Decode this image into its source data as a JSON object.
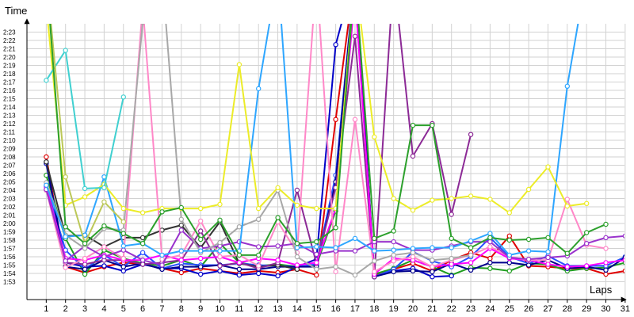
{
  "chart_data": {
    "type": "line",
    "xlabel": "Laps",
    "ylabel": "Time",
    "grid": true,
    "x": [
      1,
      2,
      3,
      4,
      5,
      6,
      7,
      8,
      9,
      10,
      11,
      12,
      13,
      14,
      15,
      16,
      17,
      18,
      19,
      20,
      21,
      22,
      23,
      24,
      25,
      26,
      27,
      28,
      29,
      30,
      31
    ],
    "x_range": [
      0,
      31.5
    ],
    "y_tick_labels": [
      "1:53",
      "1:54",
      "1:55",
      "1:56",
      "1:57",
      "1:58",
      "1:59",
      "2:00",
      "2:01",
      "2:02",
      "2:03",
      "2:04",
      "2:05",
      "2:06",
      "2:07",
      "2:08",
      "2:09",
      "2:10",
      "2:11",
      "2:12",
      "2:13",
      "2:14",
      "2:15",
      "2:16",
      "2:17",
      "2:18",
      "2:19",
      "2:20",
      "2:21",
      "2:22",
      "2:23"
    ],
    "y_range_seconds": [
      112,
      150
    ],
    "series": [
      {
        "color": "#e00000",
        "values": [
          128,
          114.8,
          114.1,
          114.8,
          115.3,
          115.1,
          114.6,
          114.1,
          114.6,
          114.3,
          114.0,
          114.3,
          114.1,
          114.5,
          113.8,
          132.5,
          150,
          113.8,
          114.5,
          115.2,
          114.3,
          115.6,
          116.5,
          115.8,
          118.5,
          114.9,
          114.8,
          114.6,
          114.6,
          113.9,
          114.3
        ]
      },
      {
        "color": "#1f9e1f",
        "values": [
          125.8,
          118.2,
          113.9,
          116.8,
          115.8,
          115.2,
          114.9,
          115.6,
          114.8,
          117.6,
          115.3,
          114.9,
          115.1,
          114.8,
          115.0,
          121.5,
          150,
          113.9,
          114.6,
          115.6,
          114.8,
          113.8,
          114.7,
          114.6,
          114.3,
          115.2,
          115.1,
          114.3,
          114.6,
          114.7,
          115.3
        ]
      },
      {
        "color": "#0000c8",
        "values": [
          127.2,
          115.3,
          114.8,
          114.9,
          114.3,
          115.1,
          114.6,
          114.6,
          113.9,
          114.3,
          113.8,
          114.0,
          113.7,
          114.8,
          115.7,
          141.5,
          150,
          113.6,
          114.3,
          114.6,
          113.6,
          113.7,
          null,
          null,
          null,
          null,
          null,
          null,
          null,
          null,
          null
        ]
      },
      {
        "color": "#2850ff",
        "values": [
          124.5,
          116.8,
          114.5,
          116.2,
          114.8,
          116.5,
          114.6,
          115.2,
          115.0,
          115.0,
          115.2,
          115.0,
          114.9,
          114.8,
          115.1,
          125.8,
          150,
          113.6,
          114.5,
          116.6,
          115.5,
          114.8,
          116.0,
          118.3,
          116.0,
          115.2,
          116.1,
          114.9,
          114.9,
          114.9,
          116.0
        ]
      },
      {
        "color": "#00008c",
        "values": [
          127.4,
          114.8,
          114.5,
          115.6,
          114.8,
          115.2,
          114.5,
          114.8,
          114.8,
          115.0,
          114.5,
          114.5,
          114.8,
          114.8,
          114.8,
          125.0,
          150,
          113.6,
          114.2,
          114.3,
          114.2,
          115.2,
          114.4,
          115.3,
          115.3,
          115.0,
          115.6,
          114.6,
          114.8,
          114.4,
          115.9
        ]
      },
      {
        "color": "#333333",
        "values": [
          127.4,
          118.5,
          118.6,
          117.2,
          118.3,
          118.3,
          119.2,
          119.8,
          117.1,
          120.2,
          115.2,
          114.8,
          115.0,
          114.5,
          null,
          null,
          null,
          null,
          null,
          null,
          null,
          null,
          null,
          null,
          null,
          null,
          null,
          null,
          null,
          null,
          null
        ]
      },
      {
        "color": "#8c2a96",
        "values": [
          124.0,
          115.3,
          115.1,
          115.6,
          115.6,
          115.1,
          115.3,
          115.6,
          119.1,
          114.9,
          115.3,
          114.6,
          115.3,
          124.0,
          115.2,
          124.3,
          142.5,
          113.6,
          150,
          128.1,
          132.0,
          121.1,
          130.7,
          null,
          null,
          null,
          null,
          null,
          null,
          null,
          null
        ]
      },
      {
        "color": "#ff00ff",
        "values": [
          124.4,
          115.8,
          115.6,
          116.2,
          115.6,
          115.6,
          116.2,
          115.6,
          115.8,
          116.0,
          115.3,
          115.8,
          115.6,
          115.0,
          115.3,
          121.8,
          147.5,
          113.9,
          115.8,
          115.6,
          114.8,
          115.1,
          115.3,
          117.0,
          115.8,
          115.6,
          115.1,
          114.8,
          114.9,
          115.3,
          115.6
        ]
      },
      {
        "color": "#ff88c8",
        "values": [
          124.0,
          114.7,
          115.8,
          117.2,
          115.8,
          146.2,
          115.7,
          116.2,
          120.3,
          116.0,
          116.2,
          114.9,
          120.2,
          116.5,
          150,
          114.2,
          132.5,
          114.2,
          115.5,
          116.0,
          114.8,
          115.6,
          116.2,
          117.2,
          116.0,
          115.6,
          115.6,
          122.9,
          117.4,
          117.0,
          null
        ]
      },
      {
        "color": "#9932cc",
        "values": [
          124.1,
          115.5,
          117.3,
          116.0,
          116.8,
          115.6,
          115.0,
          119.2,
          117.0,
          117.3,
          117.8,
          117.2,
          117.3,
          117.6,
          116.3,
          116.7,
          116.7,
          117.8,
          117.8,
          116.8,
          116.8,
          117.3,
          117.8,
          117.8,
          115.9,
          115.7,
          115.9,
          116.1,
          117.6,
          118.3,
          118.5
        ]
      },
      {
        "color": "#a8a8a8",
        "values": [
          124.9,
          118.6,
          117.0,
          119.4,
          119.2,
          144.2,
          150,
          120.5,
          116.5,
          117.7,
          119.6,
          120.5,
          124.0,
          116.0,
          114.5,
          114.8,
          113.8,
          115.5,
          116.2,
          116.5,
          115.6,
          115.8,
          116.2,
          null,
          null,
          null,
          null,
          null,
          null,
          null,
          null
        ]
      },
      {
        "color": "#2ea6ff",
        "values": [
          124.6,
          118.4,
          118.6,
          125.6,
          117.3,
          117.6,
          116.2,
          116.7,
          116.7,
          116.7,
          116.7,
          136.2,
          150,
          117.1,
          117.2,
          117.1,
          118.2,
          116.7,
          116.8,
          117.0,
          117.1,
          117.1,
          117.9,
          118.8,
          116.2,
          116.7,
          116.6,
          136.5,
          150,
          null,
          null
        ]
      },
      {
        "color": "#ecec28",
        "values": [
          146.2,
          122.2,
          123.2,
          124.7,
          121.8,
          121.3,
          121.8,
          121.8,
          121.8,
          122.3,
          139.1,
          121.8,
          124.3,
          122.2,
          121.8,
          121.8,
          150,
          130.4,
          123.0,
          121.6,
          122.8,
          123.0,
          123.3,
          122.9,
          121.3,
          124.1,
          126.8,
          122.1,
          122.4,
          null,
          null
        ]
      },
      {
        "color": "#40d0d0",
        "values": [
          137.2,
          140.8,
          124.2,
          124.3,
          135.2,
          null,
          null,
          null,
          null,
          null,
          null,
          null,
          null,
          null,
          null,
          null,
          null,
          null,
          null,
          null,
          null,
          null,
          null,
          null,
          null,
          null,
          null,
          null,
          null,
          null,
          null
        ]
      },
      {
        "color": "#bcc858",
        "values": [
          150,
          125.6,
          117.6,
          122.6,
          120.2,
          null,
          null,
          null,
          null,
          null,
          null,
          null,
          null,
          null,
          null,
          null,
          null,
          null,
          null,
          null,
          null,
          null,
          null,
          null,
          null,
          null,
          null,
          null,
          null,
          null,
          null
        ]
      },
      {
        "color": "#2ca02c",
        "values": [
          150,
          119.6,
          117.6,
          119.7,
          118.8,
          117.6,
          121.4,
          121.9,
          118.1,
          120.4,
          116.2,
          116.2,
          120.7,
          117.6,
          117.8,
          119.5,
          150,
          118.2,
          119.1,
          131.8,
          131.8,
          118.2,
          117.1,
          118.3,
          118.0,
          118.1,
          118.3,
          116.4,
          118.9,
          119.9,
          null
        ]
      }
    ]
  }
}
